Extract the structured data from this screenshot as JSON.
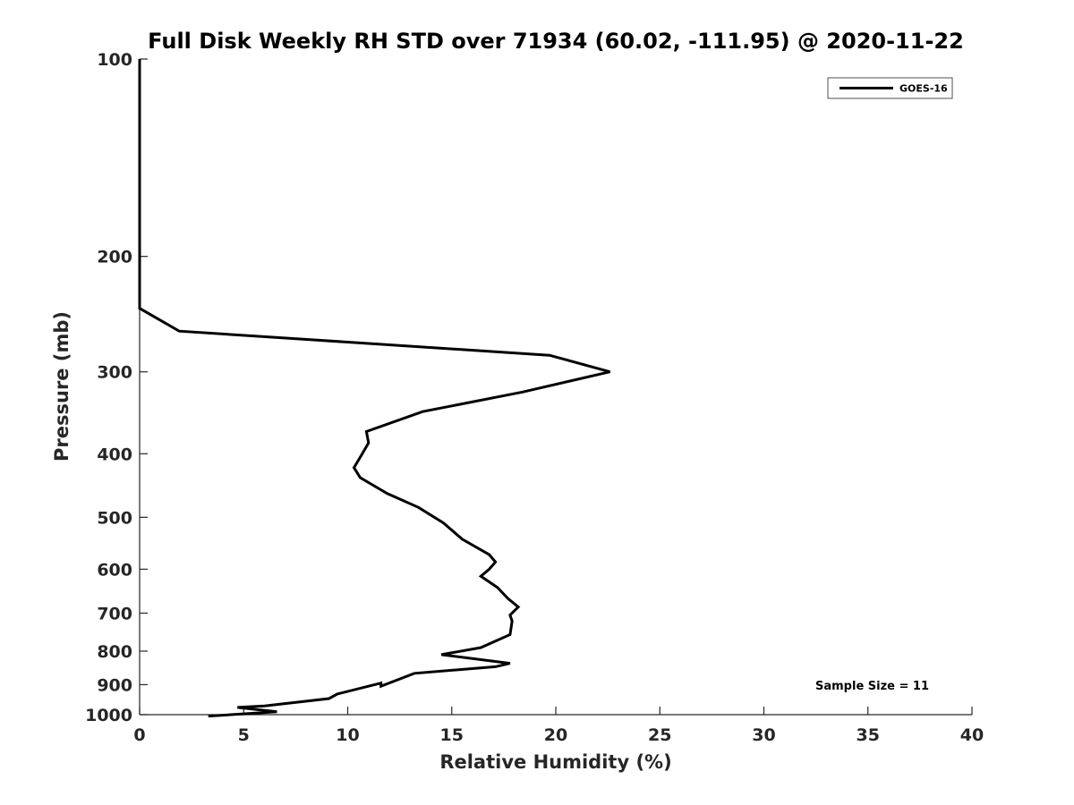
{
  "chart_data": {
    "type": "line",
    "title": "Full Disk Weekly RH STD over 71934 (60.02, -111.95) @ 2020-11-22",
    "xlabel": "Relative Humidity (%)",
    "ylabel": "Pressure (mb)",
    "xlim": [
      0,
      40
    ],
    "ylim": [
      1000,
      100
    ],
    "y_scale": "log",
    "y_reversed": true,
    "x_ticks": [
      0,
      5,
      10,
      15,
      20,
      25,
      30,
      35,
      40
    ],
    "y_ticks": [
      100,
      200,
      300,
      400,
      500,
      600,
      700,
      800,
      900,
      1000
    ],
    "grid": false,
    "legend": "top-right",
    "annotation": "Sample Size = 11",
    "series": [
      {
        "name": "GOES-16",
        "color": "#000000",
        "x": [
          0.0,
          0.0,
          0.0,
          0.0,
          0.0,
          0.0,
          1.9,
          19.7,
          22.6,
          18.4,
          13.6,
          10.9,
          11.0,
          10.7,
          10.3,
          10.6,
          11.9,
          13.4,
          14.6,
          15.5,
          16.8,
          17.1,
          16.8,
          16.4,
          17.2,
          17.7,
          18.2,
          17.8,
          17.9,
          17.8,
          16.4,
          14.5,
          17.8,
          17.1,
          13.2,
          11.6,
          11.6,
          9.5,
          9.1,
          6.0,
          4.7,
          6.6,
          3.3
        ],
        "y": [
          100,
          130,
          160,
          200,
          220,
          240,
          260,
          283,
          300,
          322,
          345,
          370,
          385,
          400,
          420,
          435,
          460,
          483,
          510,
          540,
          570,
          585,
          600,
          615,
          640,
          665,
          685,
          705,
          720,
          755,
          790,
          810,
          835,
          845,
          865,
          905,
          895,
          930,
          945,
          970,
          975,
          990,
          1005
        ]
      }
    ]
  }
}
